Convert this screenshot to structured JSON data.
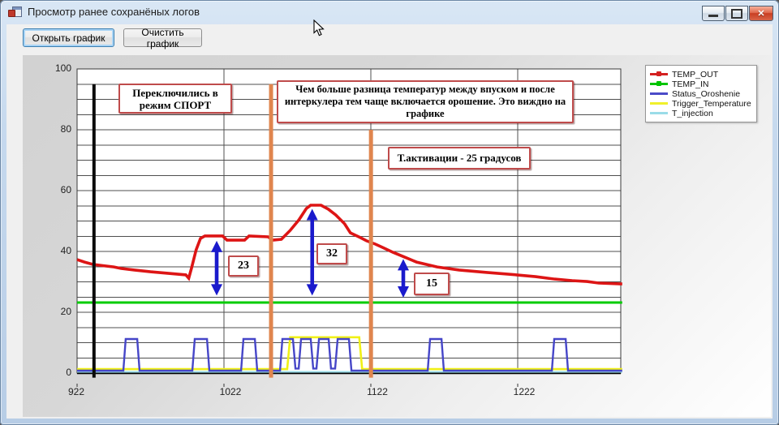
{
  "window": {
    "title": "Просмотр ранее сохранёных логов",
    "close_glyph": "✕"
  },
  "toolbar": {
    "open_label": "Открыть график",
    "clear_label": "Очистить график"
  },
  "legend": {
    "items": [
      {
        "label": "TEMP_OUT",
        "color": "#d42020",
        "marker_dot": true
      },
      {
        "label": "TEMP_IN",
        "color": "#00c400",
        "marker_dot": true
      },
      {
        "label": "Status_Oroshenie",
        "color": "#4a4ac8",
        "marker_dot": false
      },
      {
        "label": "Trigger_Temperature",
        "color": "#f0f02a",
        "marker_dot": false
      },
      {
        "label": "T_injection",
        "color": "#9adce8",
        "marker_dot": false
      }
    ]
  },
  "scrollbar": {
    "reset_glyph": "⊙",
    "left_glyph": "◄",
    "right_glyph": "►"
  },
  "chart_data": {
    "type": "line",
    "title": "",
    "x_range": [
      922,
      1292
    ],
    "y_range": [
      0,
      100
    ],
    "x_ticks": [
      922,
      1022,
      1122,
      1222
    ],
    "y_ticks": [
      0,
      20,
      40,
      60,
      80,
      100
    ],
    "y_grid_step": 5,
    "grid": true,
    "legend_position": "top-right",
    "arrow_color": "#1a1acc",
    "series": [
      {
        "name": "T_injection",
        "color": "#9adce8",
        "width": 2,
        "points": [
          [
            922,
            0.4
          ],
          [
            1293,
            0.4
          ]
        ]
      },
      {
        "name": "Trigger_Temperature",
        "color": "#f0f016",
        "width": 2.6,
        "points": [
          [
            922,
            1.3
          ],
          [
            1065,
            1.3
          ],
          [
            1067,
            11.8
          ],
          [
            1114,
            11.8
          ],
          [
            1116,
            1.3
          ],
          [
            1293,
            1.3
          ]
        ]
      },
      {
        "name": "Status_Oroshenie",
        "color": "#4646c8",
        "width": 2.4,
        "points": [
          [
            922,
            0.8
          ],
          [
            953.5,
            0.8
          ],
          [
            955.1,
            11.2
          ],
          [
            962.9,
            11.2
          ],
          [
            964.5,
            0.8
          ],
          [
            1000.4,
            0.8
          ],
          [
            1002.1,
            11.2
          ],
          [
            1010.4,
            11.2
          ],
          [
            1012,
            0.8
          ],
          [
            1033.6,
            0.8
          ],
          [
            1035.2,
            11.2
          ],
          [
            1043,
            11.2
          ],
          [
            1044.6,
            0.8
          ],
          [
            1060.1,
            0.8
          ],
          [
            1061.7,
            11.2
          ],
          [
            1068.9,
            11.2
          ],
          [
            1070.6,
            1.5
          ],
          [
            1072.8,
            1.5
          ],
          [
            1074.4,
            11.2
          ],
          [
            1081,
            11.2
          ],
          [
            1082.7,
            1.5
          ],
          [
            1084.9,
            1.5
          ],
          [
            1086.6,
            11.2
          ],
          [
            1093.2,
            11.2
          ],
          [
            1094.8,
            1.5
          ],
          [
            1097.6,
            1.5
          ],
          [
            1099.3,
            11.2
          ],
          [
            1107,
            11.2
          ],
          [
            1108.7,
            0.8
          ],
          [
            1160.6,
            0.8
          ],
          [
            1162.2,
            11.2
          ],
          [
            1170,
            11.2
          ],
          [
            1171.6,
            0.8
          ],
          [
            1245.1,
            0.8
          ],
          [
            1246.7,
            11.2
          ],
          [
            1254.5,
            11.2
          ],
          [
            1256.1,
            0.8
          ],
          [
            1293,
            0.8
          ]
        ]
      },
      {
        "name": "TEMP_IN",
        "color": "#00cc00",
        "width": 3,
        "points": [
          [
            922,
            23.2
          ],
          [
            1293,
            23.2
          ]
        ]
      },
      {
        "name": "TEMP_OUT",
        "color": "#dd1515",
        "width": 3.6,
        "points": [
          [
            922,
            37.3
          ],
          [
            927,
            36.5
          ],
          [
            933,
            35.7
          ],
          [
            947,
            34.9
          ],
          [
            952,
            34.4
          ],
          [
            961,
            33.9
          ],
          [
            972,
            33.3
          ],
          [
            996,
            32.3
          ],
          [
            998,
            31.2
          ],
          [
            1000,
            34.7
          ],
          [
            1003,
            40.5
          ],
          [
            1006,
            44.3
          ],
          [
            1009,
            45.1
          ],
          [
            1021,
            45.1
          ],
          [
            1024,
            43.7
          ],
          [
            1036,
            43.7
          ],
          [
            1039,
            45.1
          ],
          [
            1052,
            44.8
          ],
          [
            1055,
            43.7
          ],
          [
            1061,
            44
          ],
          [
            1067,
            46.9
          ],
          [
            1073,
            50.4
          ],
          [
            1078,
            54.1
          ],
          [
            1081,
            55.2
          ],
          [
            1088,
            55.2
          ],
          [
            1093,
            53.9
          ],
          [
            1098,
            52
          ],
          [
            1104,
            49.1
          ],
          [
            1108,
            46.1
          ],
          [
            1115,
            44.5
          ],
          [
            1119,
            43.5
          ],
          [
            1125,
            42.4
          ],
          [
            1130,
            41.3
          ],
          [
            1137,
            39.7
          ],
          [
            1145,
            38.1
          ],
          [
            1153,
            36.5
          ],
          [
            1167,
            34.9
          ],
          [
            1182,
            33.9
          ],
          [
            1201,
            33.1
          ],
          [
            1221,
            32.3
          ],
          [
            1234,
            31.7
          ],
          [
            1247,
            30.9
          ],
          [
            1259,
            30.4
          ],
          [
            1269,
            30.1
          ],
          [
            1277,
            29.6
          ],
          [
            1293,
            29.3
          ]
        ]
      }
    ],
    "vlines": [
      {
        "name": "vline-mode-switch",
        "color": "#0a0a0a",
        "x": 933.5,
        "y1": -1.5,
        "y2": 95,
        "width": 4
      },
      {
        "name": "vline-orange-1",
        "color": "#e0854e",
        "x": 1054,
        "y1": -1.5,
        "y2": 95,
        "width": 5
      },
      {
        "name": "vline-orange-2",
        "color": "#e0854e",
        "x": 1122,
        "y1": -1.5,
        "y2": 80,
        "width": 5
      }
    ],
    "arrows": [
      {
        "x": 1017,
        "y_top": 43.5,
        "y_bottom": 25.5,
        "label": "23"
      },
      {
        "x": 1082,
        "y_top": 54,
        "y_bottom": 25.5,
        "label": "32"
      },
      {
        "x": 1144,
        "y_top": 37.5,
        "y_bottom": 24.8,
        "label": "15"
      }
    ],
    "callouts": [
      {
        "id": "sport",
        "text": "Переключились в режим СПОРТ"
      },
      {
        "id": "difference",
        "text": "Чем больше разница температур между впуском и после интеркулера тем чаще включается орошение. Это виждно на графике"
      },
      {
        "id": "activation",
        "text": "Т.активации - 25 градусов"
      }
    ]
  }
}
